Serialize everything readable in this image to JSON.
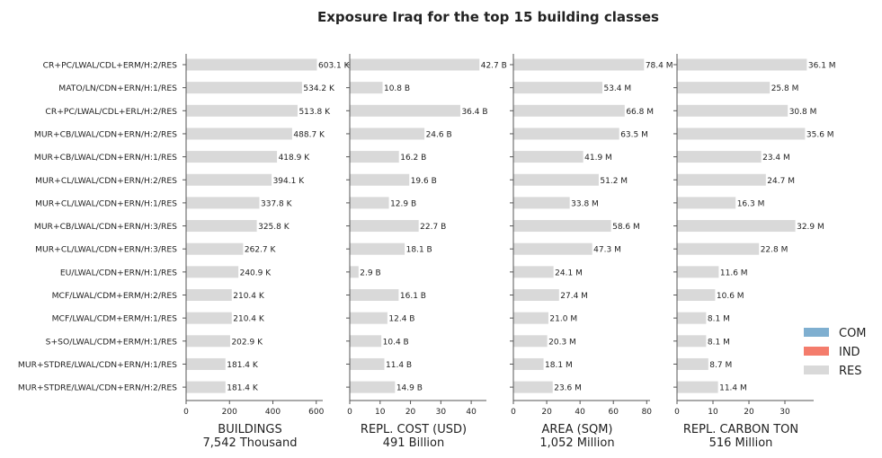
{
  "chart_data": {
    "type": "bar",
    "orientation": "horizontal",
    "title": "Exposure Iraq for the top 15 building classes",
    "categories": [
      "CR+PC/LWAL/CDL+ERM/H:2/RES",
      "MATO/LN/CDN+ERN/H:1/RES",
      "CR+PC/LWAL/CDL+ERL/H:2/RES",
      "MUR+CB/LWAL/CDN+ERN/H:2/RES",
      "MUR+CB/LWAL/CDN+ERN/H:1/RES",
      "MUR+CL/LWAL/CDN+ERN/H:2/RES",
      "MUR+CL/LWAL/CDN+ERN/H:1/RES",
      "MUR+CB/LWAL/CDN+ERN/H:3/RES",
      "MUR+CL/LWAL/CDN+ERN/H:3/RES",
      "EU/LWAL/CDN+ERN/H:1/RES",
      "MCF/LWAL/CDM+ERM/H:2/RES",
      "MCF/LWAL/CDM+ERM/H:1/RES",
      "S+SO/LWAL/CDM+ERM/H:1/RES",
      "MUR+STDRE/LWAL/CDN+ERN/H:1/RES",
      "MUR+STDRE/LWAL/CDN+ERN/H:2/RES"
    ],
    "panels": [
      {
        "xlabel": "BUILDINGS",
        "total": "7,542 Thousand",
        "xlim": [
          0,
          630
        ],
        "ticks": [
          0,
          200,
          400,
          600
        ],
        "values": [
          603.1,
          534.2,
          513.8,
          488.7,
          418.9,
          394.1,
          337.8,
          325.8,
          262.7,
          240.9,
          210.4,
          210.4,
          202.9,
          181.4,
          181.4
        ],
        "labels": [
          "603.1 K",
          "534.2 K",
          "513.8 K",
          "488.7 K",
          "418.9 K",
          "394.1 K",
          "337.8 K",
          "325.8 K",
          "262.7 K",
          "240.9 K",
          "210.4 K",
          "210.4 K",
          "202.9 K",
          "181.4 K",
          "181.4 K"
        ]
      },
      {
        "xlabel": "REPL. COST (USD)",
        "total": "491 Billion",
        "xlim": [
          0,
          45
        ],
        "ticks": [
          0,
          10,
          20,
          30,
          40
        ],
        "values": [
          42.7,
          10.8,
          36.4,
          24.6,
          16.2,
          19.6,
          12.9,
          22.7,
          18.1,
          2.9,
          16.1,
          12.4,
          10.4,
          11.4,
          14.9
        ],
        "labels": [
          "42.7 B",
          "10.8 B",
          "36.4 B",
          "24.6 B",
          "16.2 B",
          "19.6 B",
          "12.9 B",
          "22.7 B",
          "18.1 B",
          "2.9 B",
          "16.1 B",
          "12.4 B",
          "10.4 B",
          "11.4 B",
          "14.9 B"
        ]
      },
      {
        "xlabel": "AREA (SQM)",
        "total": "1,052 Million",
        "xlim": [
          0,
          82
        ],
        "ticks": [
          0,
          20,
          40,
          60,
          80
        ],
        "values": [
          78.4,
          53.4,
          66.8,
          63.5,
          41.9,
          51.2,
          33.8,
          58.6,
          47.3,
          24.1,
          27.4,
          21.0,
          20.3,
          18.1,
          23.6
        ],
        "labels": [
          "78.4 M",
          "53.4 M",
          "66.8 M",
          "63.5 M",
          "41.9 M",
          "51.2 M",
          "33.8 M",
          "58.6 M",
          "47.3 M",
          "24.1 M",
          "27.4 M",
          "21.0 M",
          "20.3 M",
          "18.1 M",
          "23.6 M"
        ]
      },
      {
        "xlabel": "REPL. CARBON TON",
        "total": "516 Million",
        "xlim": [
          0,
          38
        ],
        "ticks": [
          0,
          10,
          20,
          30
        ],
        "values": [
          36.1,
          25.8,
          30.8,
          35.6,
          23.4,
          24.7,
          16.3,
          32.9,
          22.8,
          11.6,
          10.6,
          8.1,
          8.1,
          8.7,
          11.4
        ],
        "labels": [
          "36.1 M",
          "25.8 M",
          "30.8 M",
          "35.6 M",
          "23.4 M",
          "24.7 M",
          "16.3 M",
          "32.9 M",
          "22.8 M",
          "11.6 M",
          "10.6 M",
          "8.1 M",
          "8.1 M",
          "8.7 M",
          "11.4 M"
        ]
      }
    ],
    "legend": {
      "placement": "right",
      "items": [
        {
          "name": "COM",
          "color": "#7fafd0"
        },
        {
          "name": "IND",
          "color": "#f47c6c"
        },
        {
          "name": "RES",
          "color": "#d9d9d9"
        }
      ]
    },
    "bar_color": "#d9d9d9",
    "axis_color": "#555555",
    "grid": false
  }
}
